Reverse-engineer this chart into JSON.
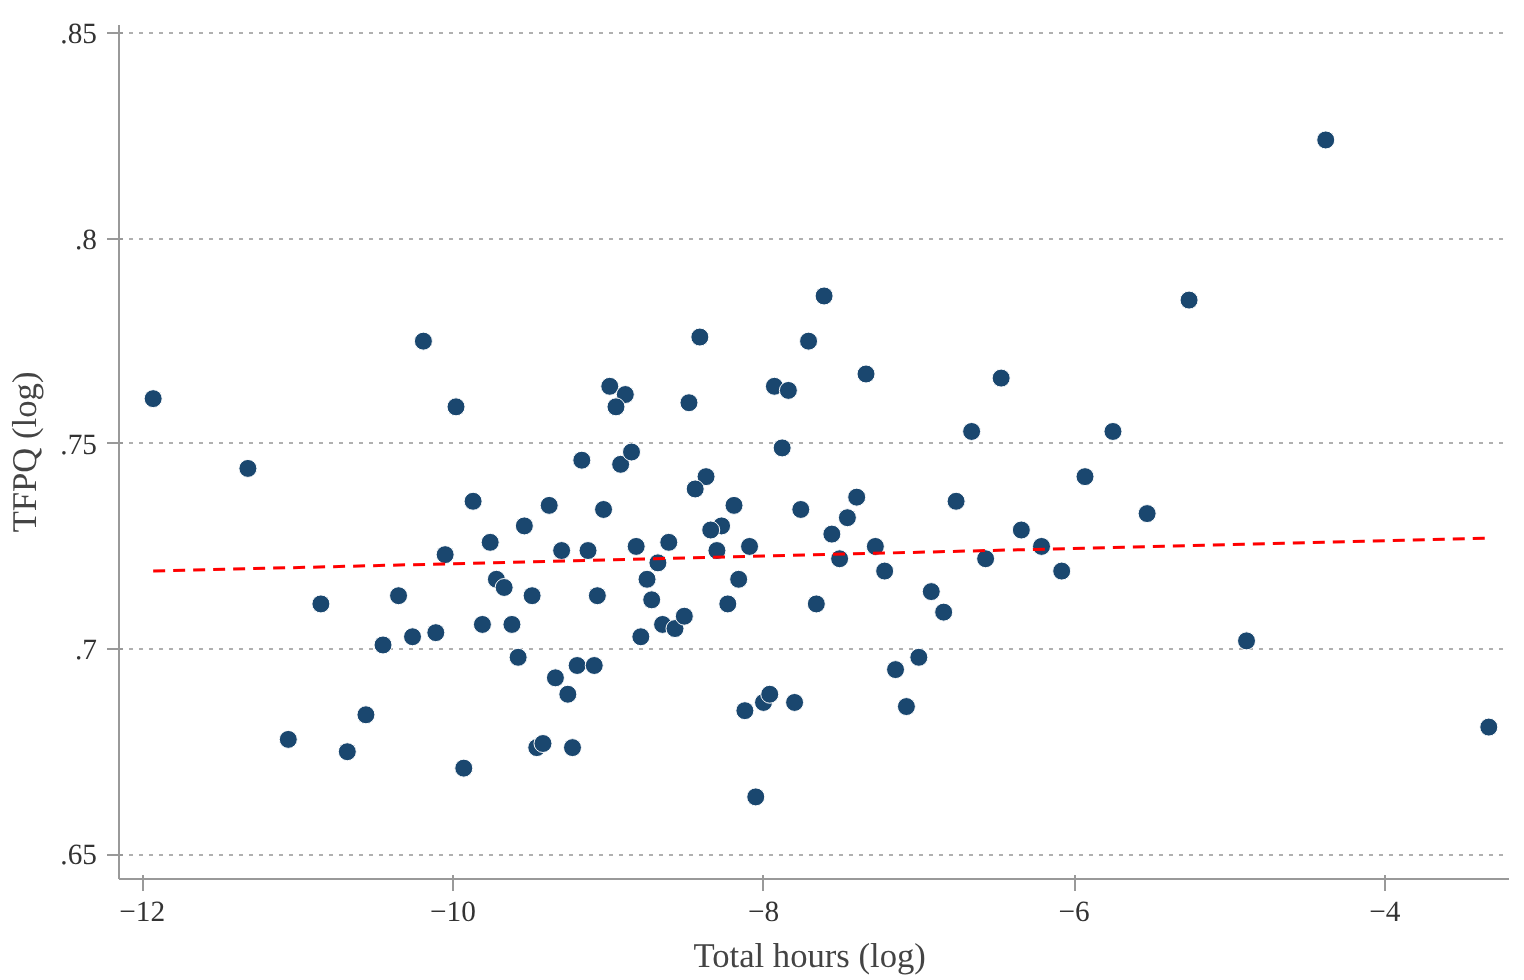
{
  "chart_data": {
    "type": "scatter",
    "xlabel": "Total hours  (log)",
    "ylabel": "TFPQ (log)",
    "xlim": [
      -12.15,
      -3.2
    ],
    "xticks": [
      -12,
      -10,
      -8,
      -6,
      -4
    ],
    "ylim": [
      0.644,
      0.852
    ],
    "yticks": [
      {
        "value": 0.65,
        "label": ".65"
      },
      {
        "value": 0.7,
        "label": ".7"
      },
      {
        "value": 0.75,
        "label": ".75"
      },
      {
        "value": 0.8,
        "label": ".8"
      },
      {
        "value": 0.85,
        "label": ".85"
      }
    ],
    "grid": "y",
    "series": [
      {
        "marker": "circle",
        "color": "#1a476f",
        "x": [
          -11.93,
          -10.19,
          -9.98,
          -11.32,
          -9.87,
          -9.17,
          -9.38,
          -9.54,
          -9.76,
          -10.05,
          -9.3,
          -9.13,
          -9.72,
          -9.67,
          -9.49,
          -9.07,
          -10.85,
          -10.35,
          -9.81,
          -9.62,
          -10.11,
          -10.26,
          -10.45,
          -9.58,
          -9.2,
          -9.09,
          -9.34,
          -9.26,
          -10.56,
          -11.06,
          -10.68,
          -9.46,
          -9.42,
          -9.23,
          -9.93,
          -7.61,
          -8.41,
          -7.71,
          -7.34,
          -6.47,
          -8.99,
          -8.89,
          -8.95,
          -8.48,
          -7.93,
          -7.84,
          -6.66,
          -7.88,
          -8.92,
          -8.85,
          -8.37,
          -8.44,
          -9.03,
          -8.19,
          -7.4,
          -6.76,
          -7.76,
          -7.46,
          -8.27,
          -8.34,
          -7.56,
          -8.82,
          -8.61,
          -8.68,
          -8.3,
          -8.09,
          -7.28,
          -7.51,
          -6.57,
          -7.22,
          -8.75,
          -8.72,
          -8.16,
          -8.23,
          -7.66,
          -6.92,
          -6.84,
          -8.79,
          -8.65,
          -8.57,
          -8.51,
          -8.12,
          -8.0,
          -7.96,
          -7.8,
          -7.15,
          -7.0,
          -7.08,
          -8.05,
          -4.38,
          -5.26,
          -5.75,
          -5.93,
          -5.53,
          -6.34,
          -6.21,
          -6.08,
          -4.89,
          -3.33
        ],
        "values": [
          0.761,
          0.775,
          0.759,
          0.744,
          0.736,
          0.746,
          0.735,
          0.73,
          0.726,
          0.723,
          0.724,
          0.724,
          0.717,
          0.715,
          0.713,
          0.713,
          0.711,
          0.713,
          0.706,
          0.706,
          0.704,
          0.703,
          0.701,
          0.698,
          0.696,
          0.696,
          0.693,
          0.689,
          0.684,
          0.678,
          0.675,
          0.676,
          0.677,
          0.676,
          0.671,
          0.786,
          0.776,
          0.775,
          0.767,
          0.766,
          0.764,
          0.762,
          0.759,
          0.76,
          0.764,
          0.763,
          0.753,
          0.749,
          0.745,
          0.748,
          0.742,
          0.739,
          0.734,
          0.735,
          0.737,
          0.736,
          0.734,
          0.732,
          0.73,
          0.729,
          0.728,
          0.725,
          0.726,
          0.721,
          0.724,
          0.725,
          0.725,
          0.722,
          0.722,
          0.719,
          0.717,
          0.712,
          0.717,
          0.711,
          0.711,
          0.714,
          0.709,
          0.703,
          0.706,
          0.705,
          0.708,
          0.685,
          0.687,
          0.689,
          0.687,
          0.695,
          0.698,
          0.686,
          0.664,
          0.824,
          0.785,
          0.753,
          0.742,
          0.733,
          0.729,
          0.725,
          0.719,
          0.702,
          0.681
        ]
      },
      {
        "type": "line",
        "color": "#ff0000",
        "line_style": "dashed",
        "x": [
          -11.93,
          -3.33
        ],
        "values": [
          0.719,
          0.727
        ]
      }
    ]
  }
}
